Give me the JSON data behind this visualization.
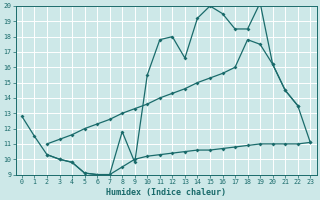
{
  "xlabel": "Humidex (Indice chaleur)",
  "xlim": [
    -0.5,
    23.5
  ],
  "ylim": [
    9,
    20
  ],
  "xticks": [
    0,
    1,
    2,
    3,
    4,
    5,
    6,
    7,
    8,
    9,
    10,
    11,
    12,
    13,
    14,
    15,
    16,
    17,
    18,
    19,
    20,
    21,
    22,
    23
  ],
  "yticks": [
    9,
    10,
    11,
    12,
    13,
    14,
    15,
    16,
    17,
    18,
    19,
    20
  ],
  "bg_color": "#cde8e8",
  "line_color": "#1a6b6b",
  "grid_color": "#ffffff",
  "line1_x": [
    0,
    1,
    2,
    3,
    4,
    5,
    6,
    7,
    8,
    9,
    10,
    11,
    12,
    13,
    14,
    15,
    16,
    17,
    18,
    19,
    20,
    21,
    22
  ],
  "line1_y": [
    12.8,
    11.5,
    10.3,
    10.0,
    9.8,
    9.1,
    9.0,
    9.0,
    11.8,
    9.8,
    15.5,
    17.8,
    18.0,
    16.6,
    19.2,
    20.0,
    19.5,
    18.5,
    18.5,
    20.2,
    16.2,
    14.5,
    13.5
  ],
  "line2_x": [
    2,
    3,
    4,
    5,
    6,
    7,
    8,
    9,
    10,
    11,
    12,
    13,
    14,
    15,
    16,
    17,
    18,
    19,
    20,
    21,
    22,
    23
  ],
  "line2_y": [
    10.3,
    10.0,
    9.8,
    9.1,
    9.0,
    9.0,
    9.5,
    10.0,
    10.2,
    10.3,
    10.4,
    10.5,
    10.6,
    10.6,
    10.7,
    10.8,
    10.9,
    11.0,
    11.0,
    11.0,
    11.0,
    11.1
  ],
  "line3_x": [
    2,
    3,
    4,
    5,
    6,
    7,
    8,
    9,
    10,
    11,
    12,
    13,
    14,
    15,
    16,
    17,
    18,
    19,
    20,
    21,
    22,
    23
  ],
  "line3_y": [
    11.0,
    11.3,
    11.6,
    12.0,
    12.3,
    12.6,
    13.0,
    13.3,
    13.6,
    14.0,
    14.3,
    14.6,
    15.0,
    15.3,
    15.6,
    16.0,
    17.8,
    17.5,
    16.2,
    14.5,
    13.5,
    11.1
  ]
}
